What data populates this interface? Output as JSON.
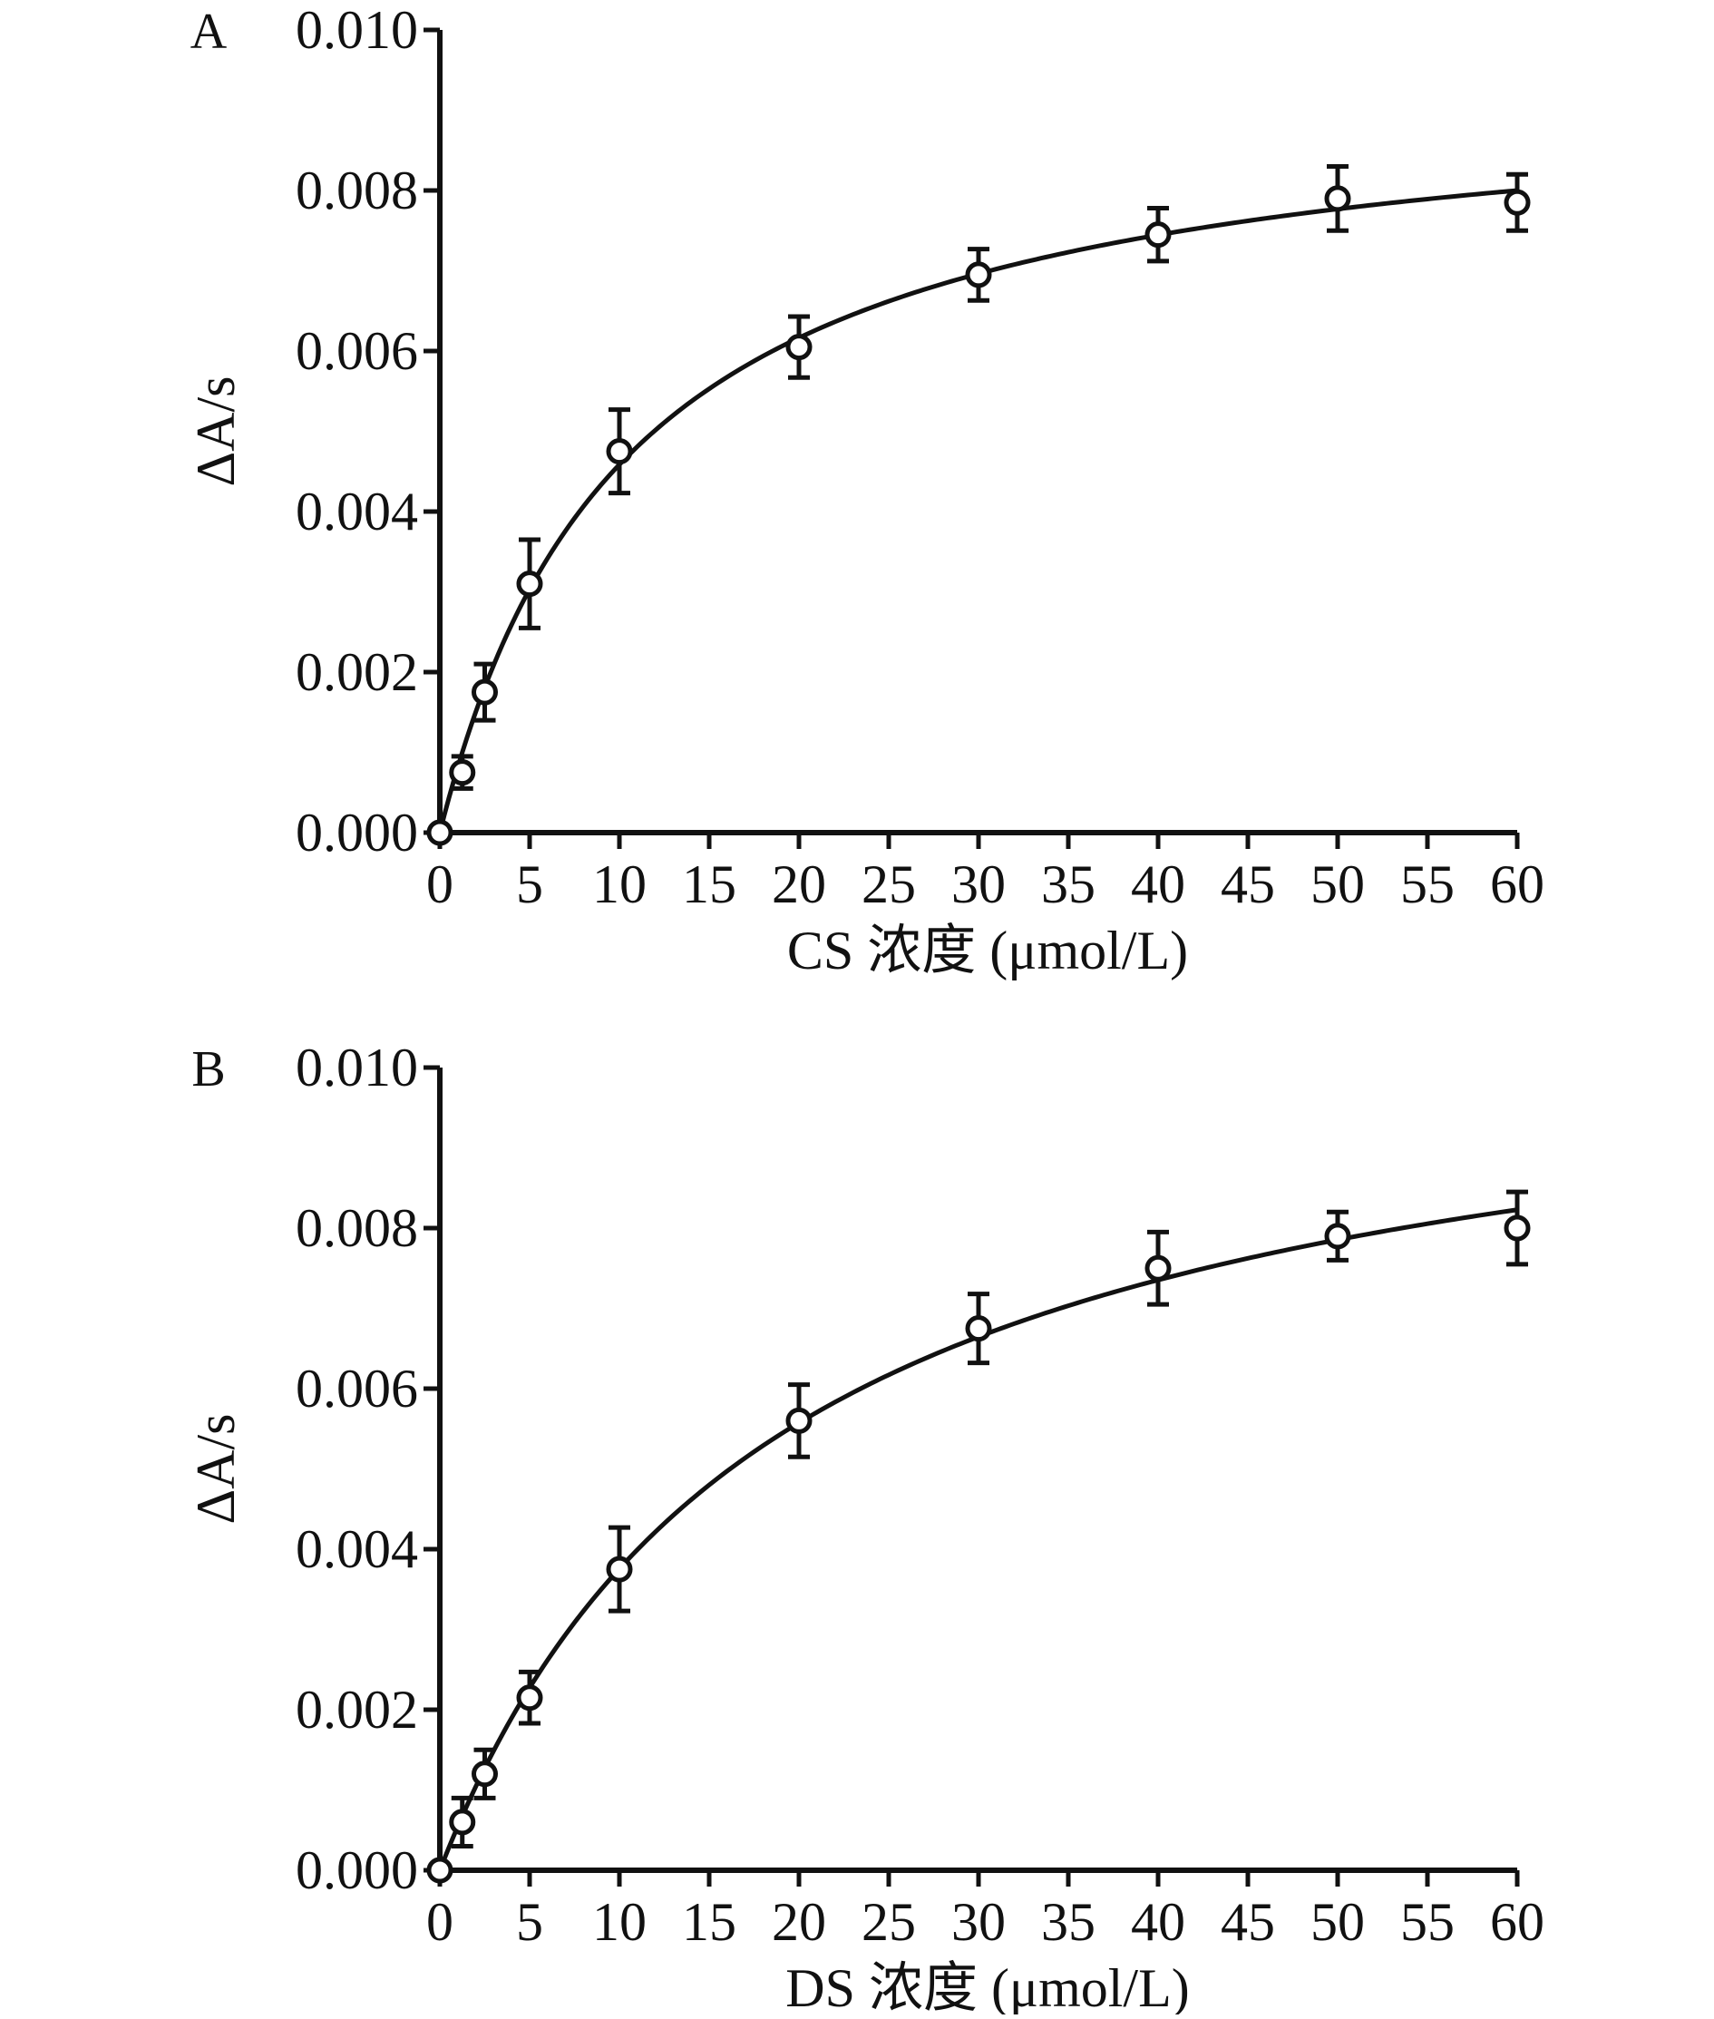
{
  "chart_data": [
    {
      "type": "scatter",
      "panel_label": "A",
      "xlabel": "CS 浓度 (μmol/L)",
      "ylabel": "ΔA/s",
      "xlim": [
        0,
        60
      ],
      "ylim": [
        0,
        0.01
      ],
      "xticks": [
        "0",
        "5",
        "10",
        "15",
        "20",
        "25",
        "30",
        "35",
        "40",
        "45",
        "50",
        "55",
        "60"
      ],
      "yticks": [
        "0.000",
        "0.002",
        "0.004",
        "0.006",
        "0.008",
        "0.010"
      ],
      "grid": false,
      "marker": "open-circle",
      "error_bars": true,
      "fit_curve": true,
      "x": [
        0,
        1.25,
        2.5,
        5,
        10,
        20,
        30,
        40,
        50,
        60
      ],
      "y": [
        0.0,
        0.00075,
        0.00175,
        0.0031,
        0.00475,
        0.00605,
        0.00695,
        0.00745,
        0.0079,
        0.00785
      ],
      "err": [
        5e-05,
        0.0002,
        0.00035,
        0.00055,
        0.00052,
        0.00038,
        0.00032,
        0.00033,
        0.0004,
        0.00035
      ]
    },
    {
      "type": "scatter",
      "panel_label": "B",
      "xlabel": "DS 浓度 (μmol/L)",
      "ylabel": "ΔA/s",
      "xlim": [
        0,
        60
      ],
      "ylim": [
        0,
        0.01
      ],
      "xticks": [
        "0",
        "5",
        "10",
        "15",
        "20",
        "25",
        "30",
        "35",
        "40",
        "45",
        "50",
        "55",
        "60"
      ],
      "yticks": [
        "0.000",
        "0.002",
        "0.004",
        "0.006",
        "0.008",
        "0.010"
      ],
      "grid": false,
      "marker": "open-circle",
      "error_bars": true,
      "fit_curve": true,
      "x": [
        0,
        1.25,
        2.5,
        5,
        10,
        20,
        30,
        40,
        50,
        60
      ],
      "y": [
        0.0,
        0.0006,
        0.0012,
        0.00215,
        0.00375,
        0.0056,
        0.00675,
        0.0075,
        0.0079,
        0.008
      ],
      "err": [
        5e-05,
        0.0003,
        0.0003,
        0.00032,
        0.00052,
        0.00045,
        0.00043,
        0.00045,
        0.0003,
        0.00045
      ]
    }
  ]
}
